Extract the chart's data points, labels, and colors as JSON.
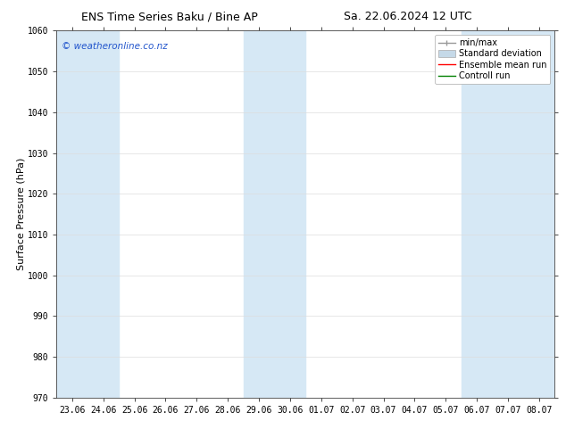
{
  "title_left": "ENS Time Series Baku / Bine AP",
  "title_right": "Sa. 22.06.2024 12 UTC",
  "ylabel": "Surface Pressure (hPa)",
  "ylim": [
    970,
    1060
  ],
  "yticks": [
    970,
    980,
    990,
    1000,
    1010,
    1020,
    1030,
    1040,
    1050,
    1060
  ],
  "xtick_labels": [
    "23.06",
    "24.06",
    "25.06",
    "26.06",
    "27.06",
    "28.06",
    "29.06",
    "30.06",
    "01.07",
    "02.07",
    "03.07",
    "04.07",
    "05.07",
    "06.07",
    "07.07",
    "08.07"
  ],
  "background_color": "#ffffff",
  "plot_bg_color": "#ffffff",
  "shaded_color": "#d6e8f5",
  "watermark": "© weatheronline.co.nz",
  "watermark_color": "#2255cc",
  "legend_entries": [
    "min/max",
    "Standard deviation",
    "Ensemble mean run",
    "Controll run"
  ],
  "legend_colors_line": [
    "#999999",
    "#c5d9e8",
    "#ff0000",
    "#008000"
  ],
  "title_fontsize": 9,
  "axis_label_fontsize": 8,
  "tick_fontsize": 7,
  "legend_fontsize": 7
}
